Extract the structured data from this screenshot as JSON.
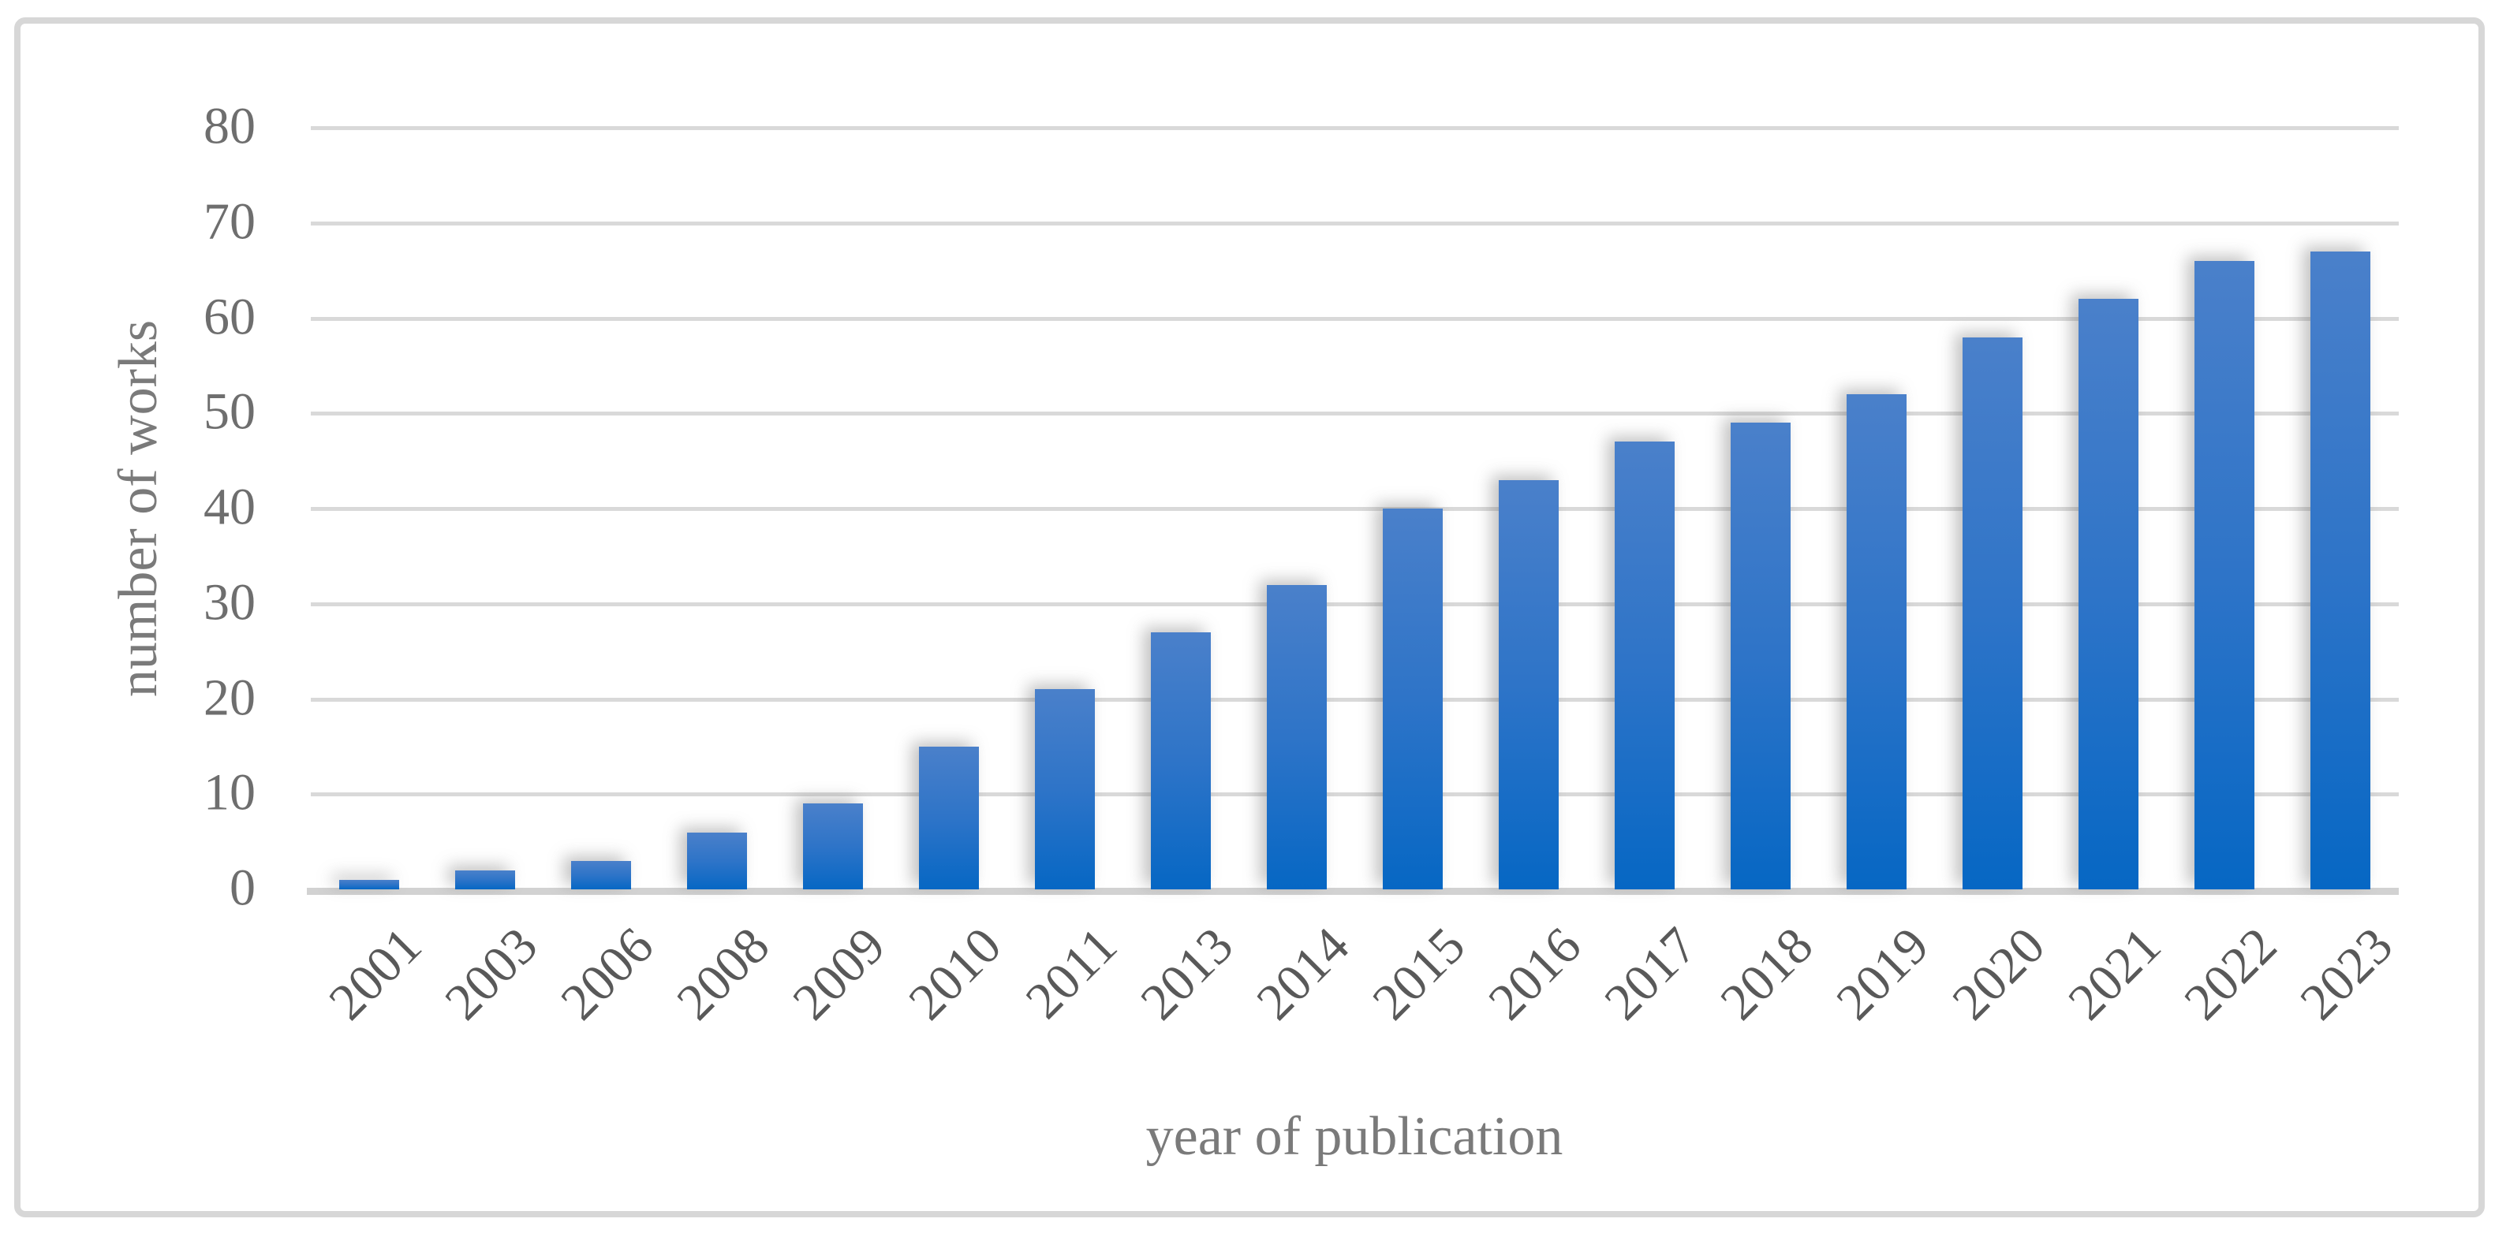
{
  "chart_data": {
    "type": "bar",
    "title": "",
    "xlabel": "year of publication",
    "ylabel": "number of works",
    "categories": [
      "2001",
      "2003",
      "2006",
      "2008",
      "2009",
      "2010",
      "2011",
      "2013",
      "2014",
      "2015",
      "2016",
      "2017",
      "2018",
      "2019",
      "2020",
      "2021",
      "2022",
      "2023"
    ],
    "values": [
      1,
      2,
      3,
      6,
      9,
      15,
      21,
      27,
      32,
      40,
      43,
      47,
      49,
      52,
      58,
      62,
      66,
      67
    ],
    "series": [
      {
        "name": "number of works",
        "values": [
          1,
          2,
          3,
          6,
          9,
          15,
          21,
          27,
          32,
          40,
          43,
          47,
          49,
          52,
          58,
          62,
          66,
          67
        ]
      }
    ],
    "ylim": [
      0,
      80
    ],
    "ytick_step": 10,
    "yticks": [
      0,
      10,
      20,
      30,
      40,
      50,
      60,
      70,
      80
    ],
    "grid": true,
    "legend": "none",
    "colors": {
      "bar_gradient_top": "#4a80ca",
      "bar_gradient_mid": "#2e74c8",
      "bar_gradient_bottom": "#0667c4",
      "gridline": "#d9d9d9",
      "axis_line": "#d2d2d2",
      "x_tick_label": "#595959",
      "y_tick_label": "#6e6e6e",
      "axis_title": "#7a7a7a",
      "frame_border": "#d7d7d7",
      "background": "#ffffff"
    }
  }
}
